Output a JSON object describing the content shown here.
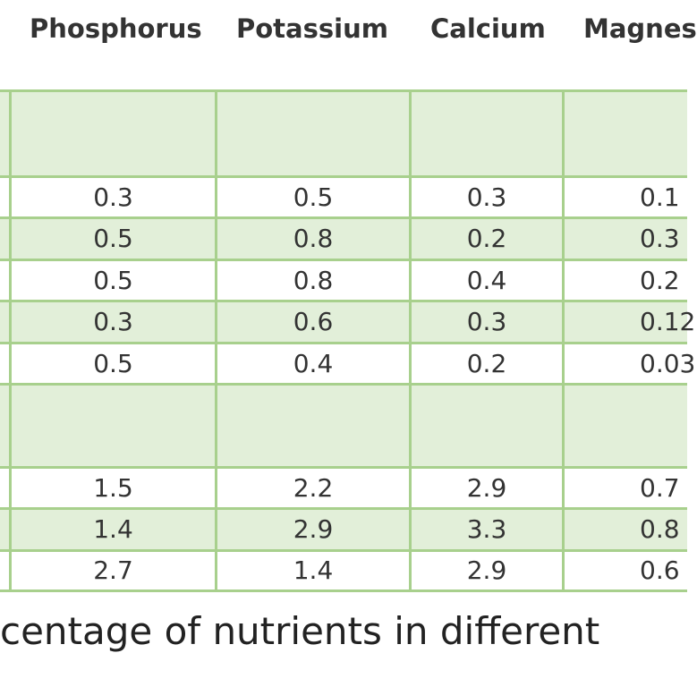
{
  "table": {
    "headers": [
      "Phosphorus",
      "Potassium",
      "Calcium",
      "Magnes"
    ],
    "rows": [
      [
        "",
        "",
        "",
        ""
      ],
      [
        "0.3",
        "0.5",
        "0.3",
        "0.1"
      ],
      [
        "0.5",
        "0.8",
        "0.2",
        "0.3"
      ],
      [
        "0.5",
        "0.8",
        "0.4",
        "0.2"
      ],
      [
        "0.3",
        "0.6",
        "0.3",
        "0.12"
      ],
      [
        "0.5",
        "0.4",
        "0.2",
        "0.03"
      ],
      [
        "",
        "",
        "",
        ""
      ],
      [
        "1.5",
        "2.2",
        "2.9",
        "0.7"
      ],
      [
        "1.4",
        "2.9",
        "3.3",
        "0.8"
      ],
      [
        "2.7",
        "1.4",
        "2.9",
        "0.6"
      ]
    ]
  },
  "caption": "centage of nutrients in different",
  "colors": {
    "grid": "#a8d08d",
    "band": "#e2efd9",
    "text": "#333333"
  }
}
